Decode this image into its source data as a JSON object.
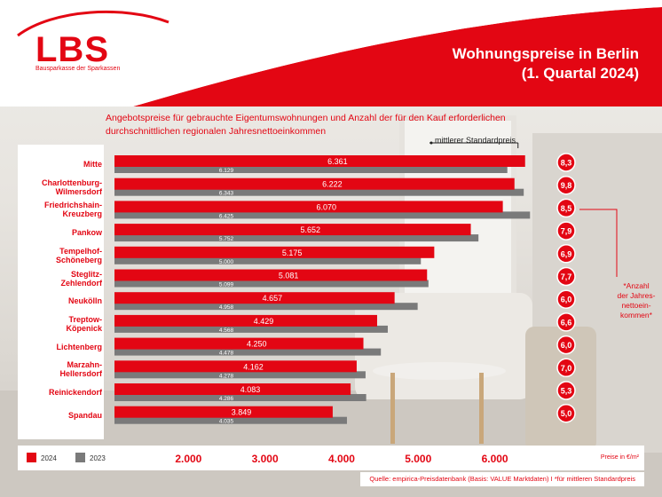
{
  "brand": {
    "logo": "LBS",
    "tagline": "Bausparkasse der Sparkassen",
    "accent_color": "#e30613",
    "gray_color": "#7a7a7a"
  },
  "title_line1": "Wohnungspreise in Berlin",
  "title_line2": "(1. Quartal 2024)",
  "subtitle_line1": "Angebotspreise für gebrauchte Eigentumswohnungen und Anzahl der für den Kauf erforderlichen",
  "subtitle_line2": "durchschnittlichen regionalen Jahresnettoeinkommen",
  "std_price_label": "mittlerer Standardpreis",
  "annotation": [
    "*Anzahl",
    "der Jahres-",
    "nettoein-",
    "kommen*"
  ],
  "legend": {
    "s2024": "2024",
    "s2023": "2023"
  },
  "unit_label": "Preise in €/m²",
  "source": "Quelle: empirica-Preisdatenbank (Basis: VALUE Marktdaten)   I   *für mittleren Standardpreis",
  "chart_data": {
    "type": "bar",
    "orientation": "horizontal",
    "categories": [
      [
        "Mitte"
      ],
      [
        "Charlottenburg-",
        "Wilmersdorf"
      ],
      [
        "Friedrichshain-",
        "Kreuzberg"
      ],
      [
        "Pankow"
      ],
      [
        "Tempelhof-",
        "Schöneberg"
      ],
      [
        "Steglitz-",
        "Zehlendorf"
      ],
      [
        "Neukölln"
      ],
      [
        "Treptow-",
        "Köpenick"
      ],
      [
        "Lichtenberg"
      ],
      [
        "Marzahn-",
        "Hellersdorf"
      ],
      [
        "Reinickendorf"
      ],
      [
        "Spandau"
      ]
    ],
    "series": [
      {
        "name": "2024",
        "color": "#e30613",
        "values": [
          6361,
          6222,
          6070,
          5652,
          5175,
          5081,
          4657,
          4429,
          4250,
          4162,
          4083,
          3849
        ],
        "labels": [
          "6.361",
          "6.222",
          "6.070",
          "5.652",
          "5.175",
          "5.081",
          "4.657",
          "4.429",
          "4.250",
          "4.162",
          "4.083",
          "3.849"
        ]
      },
      {
        "name": "2023",
        "color": "#7a7a7a",
        "values": [
          6129,
          6343,
          6425,
          5752,
          5000,
          5099,
          4958,
          4568,
          4478,
          4278,
          4286,
          4035
        ],
        "labels": [
          "6.129",
          "6.343",
          "6.425",
          "5.752",
          "5.000",
          "5.099",
          "4.958",
          "4.568",
          "4.478",
          "4.278",
          "4.286",
          "4.035"
        ]
      }
    ],
    "income_ratio": [
      "8,3",
      "9,8",
      "8,5",
      "7,9",
      "6,9",
      "7,7",
      "6,0",
      "6,6",
      "6,0",
      "7,0",
      "5,3",
      "5,0"
    ],
    "x_ticks": [
      2000,
      3000,
      4000,
      5000,
      6000
    ],
    "x_tick_labels": [
      "2.000",
      "3.000",
      "4.000",
      "5.000",
      "6.000"
    ],
    "xlim": [
      1000,
      6700
    ],
    "xlabel": "Preise in €/m²",
    "grid": false,
    "legend_position": "bottom-left"
  }
}
